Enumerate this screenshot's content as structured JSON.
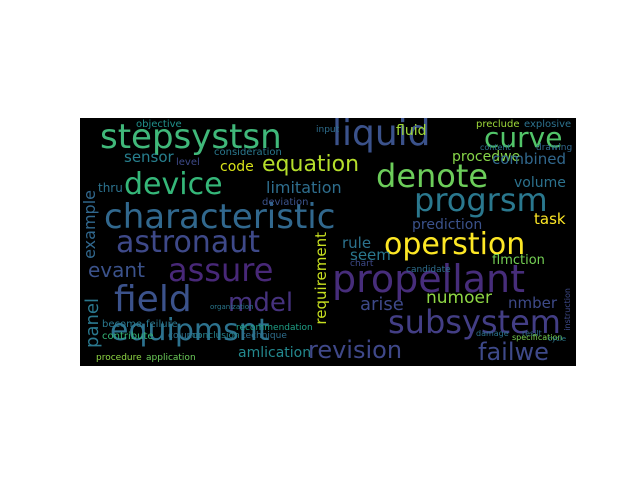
{
  "words": [
    {
      "text": "stepsystsn",
      "color": "#40b87a"
    },
    {
      "text": "liquid",
      "color": "#3b528b"
    },
    {
      "text": "curve",
      "color": "#52c569"
    },
    {
      "text": "device",
      "color": "#35b779"
    },
    {
      "text": "denote",
      "color": "#6ccd5a"
    },
    {
      "text": "progrsm",
      "color": "#2a788e"
    },
    {
      "text": "characteristic",
      "color": "#31688e"
    },
    {
      "text": "astronaut",
      "color": "#3e4989"
    },
    {
      "text": "assure",
      "color": "#482878"
    },
    {
      "text": "operstion",
      "color": "#fde725"
    },
    {
      "text": "field",
      "color": "#3b528b"
    },
    {
      "text": "mdel",
      "color": "#46327e"
    },
    {
      "text": "propellant",
      "color": "#472d7b"
    },
    {
      "text": "subsystem",
      "color": "#433e85"
    },
    {
      "text": "equipmsnt",
      "color": "#2c728e"
    },
    {
      "text": "revision",
      "color": "#3f4889"
    },
    {
      "text": "failwe",
      "color": "#3e4989"
    },
    {
      "text": "equation",
      "color": "#b5de2b"
    },
    {
      "text": "limitation",
      "color": "#2e6e8e"
    },
    {
      "text": "sensor",
      "color": "#277f8e"
    },
    {
      "text": "code",
      "color": "#d8e219"
    },
    {
      "text": "procedwe",
      "color": "#86d549"
    },
    {
      "text": "combined",
      "color": "#31688e"
    },
    {
      "text": "volume",
      "color": "#2c728e"
    },
    {
      "text": "task",
      "color": "#fde725"
    },
    {
      "text": "fluid",
      "color": "#a2da37"
    },
    {
      "text": "evant",
      "color": "#3b528b"
    },
    {
      "text": "example",
      "color": "#31688e"
    },
    {
      "text": "panel",
      "color": "#2a788e"
    },
    {
      "text": "requirement",
      "color": "#c8e020"
    },
    {
      "text": "rule",
      "color": "#2c728e"
    },
    {
      "text": "seem",
      "color": "#2a788e"
    },
    {
      "text": "flmction",
      "color": "#75d054"
    },
    {
      "text": "prediction",
      "color": "#3b528b"
    },
    {
      "text": "arise",
      "color": "#3e4989"
    },
    {
      "text": "numoer",
      "color": "#8fd744"
    },
    {
      "text": "nmber",
      "color": "#3e4a89"
    },
    {
      "text": "amlication",
      "color": "#23898e"
    },
    {
      "text": "thru",
      "color": "#2c728e"
    },
    {
      "text": "objective",
      "color": "#21918c"
    },
    {
      "text": "explosive",
      "color": "#2c728e"
    },
    {
      "text": "preclude",
      "color": "#9fda3a"
    },
    {
      "text": "drawing",
      "color": "#31688e"
    },
    {
      "text": "content",
      "color": "#2c728e"
    },
    {
      "text": "consideration",
      "color": "#2a788e"
    },
    {
      "text": "deviation",
      "color": "#3b528b"
    },
    {
      "text": "level",
      "color": "#3e4a89"
    },
    {
      "text": "candidate",
      "color": "#2e6e8e"
    },
    {
      "text": "recommendation",
      "color": "#1fa187"
    },
    {
      "text": "feilure",
      "color": "#2a788e"
    },
    {
      "text": "become",
      "color": "#2a788e"
    },
    {
      "text": "contribute",
      "color": "#35b779"
    },
    {
      "text": "conclusion",
      "color": "#25848e"
    },
    {
      "text": "column",
      "color": "#2c728e"
    },
    {
      "text": "technique",
      "color": "#2e6e8e"
    },
    {
      "text": "resilt",
      "color": "#31688e"
    },
    {
      "text": "procedure",
      "color": "#8fd744"
    },
    {
      "text": "application",
      "color": "#6ccd5a"
    },
    {
      "text": "specification",
      "color": "#7ad151"
    },
    {
      "text": "input",
      "color": "#2e6e8e"
    },
    {
      "text": "chart",
      "color": "#3e4989"
    },
    {
      "text": "damage",
      "color": "#2c728e"
    },
    {
      "text": "instruction",
      "color": "#3e4a89"
    },
    {
      "text": "cycle",
      "color": "#2a788e"
    },
    {
      "text": "organization",
      "color": "#2a788e"
    }
  ]
}
